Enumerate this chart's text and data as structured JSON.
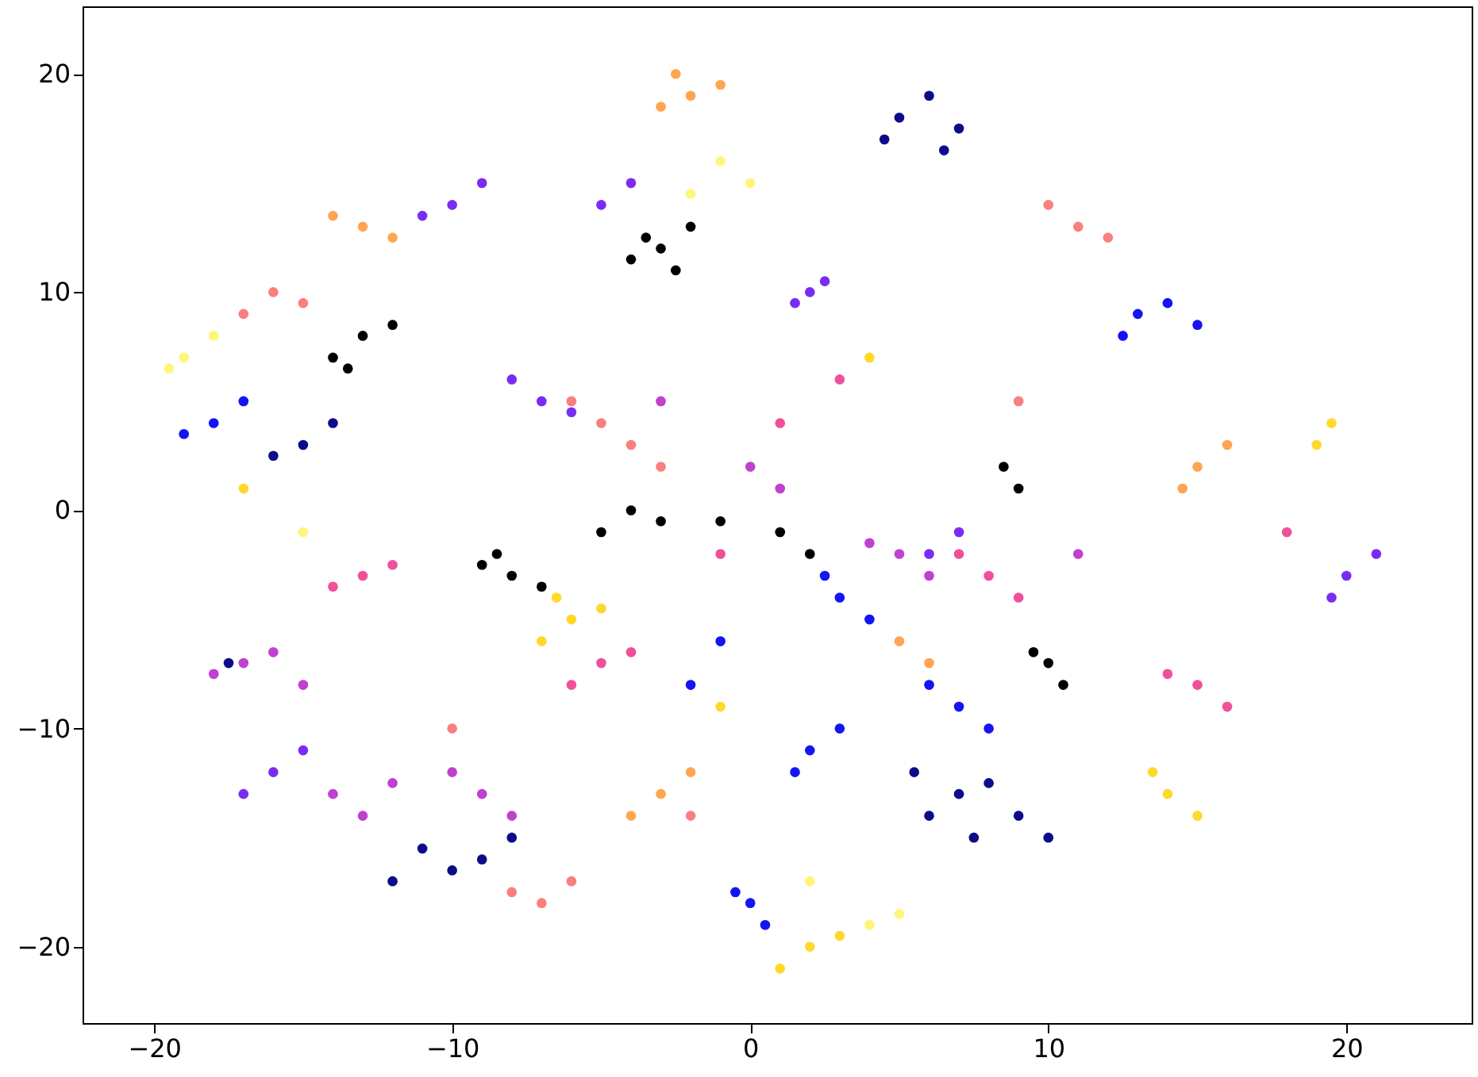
{
  "chart_data": {
    "type": "scatter",
    "marker": "circle",
    "grid": false,
    "legend": false,
    "xlim": [
      -22.4,
      24.2
    ],
    "ylim": [
      -23.5,
      23.1
    ],
    "xticks": [
      -20,
      -10,
      0,
      10,
      20
    ],
    "yticks": [
      -20,
      -10,
      0,
      10,
      20
    ],
    "series": [
      {
        "color": "#000000",
        "x": [
          -3,
          -2,
          -4,
          -2.5,
          -3.5,
          -13,
          -14,
          -12,
          -13.5,
          -8,
          -9,
          -7,
          -8.5,
          10,
          10.5,
          9.5,
          -4,
          -5,
          -3,
          9,
          8.5,
          1,
          2,
          -1
        ],
        "values": [
          12,
          13,
          11.5,
          11,
          12.5,
          8,
          7,
          8.5,
          6.5,
          -3,
          -2.5,
          -3.5,
          -2,
          -7,
          -8,
          -6.5,
          0,
          -1,
          -0.5,
          1,
          2,
          -1,
          -2,
          -0.5
        ]
      },
      {
        "color": "#0c0c8a",
        "x": [
          5,
          6,
          7,
          4.5,
          6.5,
          7,
          6,
          8,
          7.5,
          5.5,
          -9,
          -10,
          -8,
          -11,
          -15,
          -16,
          -14,
          9,
          10,
          -12,
          -17.5
        ],
        "values": [
          18,
          19,
          17.5,
          17,
          16.5,
          -13,
          -14,
          -12.5,
          -15,
          -12,
          -16,
          -16.5,
          -15,
          -15.5,
          3,
          2.5,
          4,
          -14,
          -15,
          -17,
          -7
        ]
      },
      {
        "color": "#1414f5",
        "x": [
          13,
          14,
          12.5,
          15,
          0,
          0.5,
          -0.5,
          2,
          3,
          1.5,
          3,
          4,
          2.5,
          -18,
          -17,
          -19,
          6,
          7,
          8,
          -1,
          -2
        ],
        "values": [
          9,
          9.5,
          8,
          8.5,
          -18,
          -19,
          -17.5,
          -11,
          -10,
          -12,
          -4,
          -5,
          -3,
          4,
          5,
          3.5,
          -8,
          -9,
          -10,
          -6,
          -8
        ]
      },
      {
        "color": "#7a2cf5",
        "x": [
          2,
          2.5,
          1.5,
          -10,
          -9,
          -11,
          -7,
          -6,
          -8,
          20,
          21,
          19.5,
          -16,
          -15,
          -17,
          -5,
          -4,
          7,
          6
        ],
        "values": [
          10,
          10.5,
          9.5,
          14,
          15,
          13.5,
          5,
          4.5,
          6,
          -3,
          -2,
          -4,
          -12,
          -11,
          -13,
          14,
          15,
          -1,
          -2
        ]
      },
      {
        "color": "#c040d0",
        "x": [
          -17,
          -16,
          -18,
          -15,
          -9,
          -10,
          -8,
          5,
          6,
          4,
          -14,
          -13,
          -12,
          0,
          1,
          11,
          -3
        ],
        "values": [
          -7,
          -6.5,
          -7.5,
          -8,
          -13,
          -12,
          -14,
          -2,
          -3,
          -1.5,
          -13,
          -14,
          -12.5,
          2,
          1,
          -2,
          5
        ]
      },
      {
        "color": "#f0509a",
        "x": [
          -13,
          -14,
          -12,
          -5,
          -6,
          -4,
          15,
          16,
          14,
          8,
          9,
          7,
          3,
          1,
          18,
          -1
        ],
        "values": [
          -3,
          -3.5,
          -2.5,
          -7,
          -8,
          -6.5,
          -8,
          -9,
          -7.5,
          -3,
          -4,
          -2,
          6,
          4,
          -1,
          -2
        ]
      },
      {
        "color": "#fa7f7f",
        "x": [
          -4,
          -5,
          -3,
          -6,
          11,
          12,
          10,
          -7,
          -6,
          -8,
          -16,
          -15,
          -17,
          -10,
          -2,
          9
        ],
        "values": [
          3,
          4,
          2,
          5,
          13,
          12.5,
          14,
          -18,
          -17,
          -17.5,
          10,
          9.5,
          9,
          -10,
          -14,
          5
        ]
      },
      {
        "color": "#ffa552",
        "x": [
          -2,
          -1,
          -3,
          -2.5,
          15,
          16,
          14.5,
          -13,
          -12,
          -14,
          -3,
          -2,
          -4,
          5,
          6
        ],
        "values": [
          19,
          19.5,
          18.5,
          20,
          2,
          3,
          1,
          13,
          12.5,
          13.5,
          -13,
          -12,
          -14,
          -6,
          -7
        ]
      },
      {
        "color": "#ffd92a",
        "x": [
          -6,
          -7,
          -5,
          -6.5,
          2,
          3,
          1,
          14,
          15,
          13.5,
          19,
          19.5,
          -17,
          4,
          -1
        ],
        "values": [
          -5,
          -6,
          -4.5,
          -4,
          -20,
          -19.5,
          -21,
          -13,
          -14,
          -12,
          3,
          4,
          1,
          7,
          -9
        ]
      },
      {
        "color": "#fff57a",
        "x": [
          -19,
          -18,
          -19.5,
          -1,
          0,
          -2,
          4,
          5,
          2,
          -15
        ],
        "values": [
          7,
          8,
          6.5,
          16,
          15,
          14.5,
          -19,
          -18.5,
          -17,
          -1
        ]
      }
    ]
  }
}
